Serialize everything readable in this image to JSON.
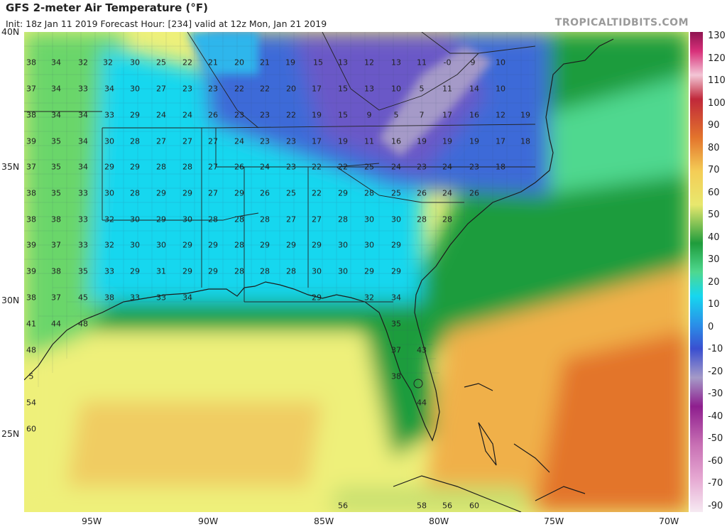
{
  "header": {
    "title": "GFS 2-meter Air Temperature (°F)",
    "subtitle": "Init: 18z Jan 11 2019   Forecast Hour: [234]   valid at 12z Mon, Jan 21 2019",
    "brand": "TROPICALTIDBITS.COM"
  },
  "axes": {
    "lat_labels": [
      "40N",
      "35N",
      "30N",
      "25N"
    ],
    "lon_labels": [
      "95W",
      "90W",
      "85W",
      "80W",
      "75W",
      "70W"
    ]
  },
  "colorbar": {
    "labels": [
      "130",
      "120",
      "110",
      "100",
      "90",
      "80",
      "70",
      "60",
      "50",
      "40",
      "30",
      "20",
      "10",
      "0",
      "-10",
      "-20",
      "-30",
      "-40",
      "-50",
      "-60",
      "-70",
      "-90"
    ],
    "colors": [
      "#8e1450",
      "#d8307a",
      "#e98cb5",
      "#f3c6d6",
      "#b8253a",
      "#d8522a",
      "#ec8c3a",
      "#f4cd56",
      "#e8e86e",
      "#1c8a2c",
      "#4fd67a",
      "#22d2e8",
      "#2a8fe8",
      "#3a4fd0",
      "#5a3cb0",
      "#a59ac8",
      "#b063b0",
      "#8e1e8e",
      "#c870b4",
      "#e6a8d2",
      "#f3d2e6",
      "#f6eaf2"
    ]
  },
  "colors": {
    "very_cold": "#6a59c7",
    "cold": "#3e6ad8",
    "cool": "#2fb6ec",
    "cyan": "#16d7ef",
    "teal": "#4fd88f",
    "green": "#1f9c3c",
    "lightgreen": "#6ad66b",
    "yellow": "#eef07a",
    "orange": "#f0b04a",
    "darkorange": "#e3742c"
  },
  "temperatures": [
    {
      "t": "38"
    },
    {
      "t": "34"
    },
    {
      "t": "32"
    },
    {
      "t": "32"
    },
    {
      "t": "30"
    },
    {
      "t": "25"
    },
    {
      "t": "22"
    },
    {
      "t": "21"
    },
    {
      "t": "20"
    },
    {
      "t": "21"
    },
    {
      "t": "19"
    },
    {
      "t": "15"
    },
    {
      "t": "13"
    },
    {
      "t": "12"
    },
    {
      "t": "13"
    },
    {
      "t": "11"
    },
    {
      "t": "-0"
    },
    {
      "t": "9"
    },
    {
      "t": "10"
    },
    {
      "t": "37"
    },
    {
      "t": "34"
    },
    {
      "t": "33"
    },
    {
      "t": "34"
    },
    {
      "t": "30"
    },
    {
      "t": "27"
    },
    {
      "t": "23"
    },
    {
      "t": "23"
    },
    {
      "t": "22"
    },
    {
      "t": "22"
    },
    {
      "t": "20"
    },
    {
      "t": "17"
    },
    {
      "t": "15"
    },
    {
      "t": "13"
    },
    {
      "t": "10"
    },
    {
      "t": "5"
    },
    {
      "t": "11"
    },
    {
      "t": "14"
    },
    {
      "t": "10"
    },
    {
      "t": "38"
    },
    {
      "t": "34"
    },
    {
      "t": "34"
    },
    {
      "t": "33"
    },
    {
      "t": "29"
    },
    {
      "t": "24"
    },
    {
      "t": "24"
    },
    {
      "t": "26"
    },
    {
      "t": "23"
    },
    {
      "t": "23"
    },
    {
      "t": "22"
    },
    {
      "t": "19"
    },
    {
      "t": "15"
    },
    {
      "t": "9"
    },
    {
      "t": "5"
    },
    {
      "t": "7"
    },
    {
      "t": "17"
    },
    {
      "t": "16"
    },
    {
      "t": "12"
    },
    {
      "t": "19"
    },
    {
      "t": "39"
    },
    {
      "t": "35"
    },
    {
      "t": "34"
    },
    {
      "t": "30"
    },
    {
      "t": "28"
    },
    {
      "t": "27"
    },
    {
      "t": "27"
    },
    {
      "t": "27"
    },
    {
      "t": "24"
    },
    {
      "t": "23"
    },
    {
      "t": "23"
    },
    {
      "t": "17"
    },
    {
      "t": "19"
    },
    {
      "t": "11"
    },
    {
      "t": "16"
    },
    {
      "t": "19"
    },
    {
      "t": "19"
    },
    {
      "t": "19"
    },
    {
      "t": "17"
    },
    {
      "t": "18"
    },
    {
      "t": "37"
    },
    {
      "t": "35"
    },
    {
      "t": "34"
    },
    {
      "t": "29"
    },
    {
      "t": "29"
    },
    {
      "t": "28"
    },
    {
      "t": "28"
    },
    {
      "t": "27"
    },
    {
      "t": "26"
    },
    {
      "t": "24"
    },
    {
      "t": "23"
    },
    {
      "t": "22"
    },
    {
      "t": "22"
    },
    {
      "t": "25"
    },
    {
      "t": "24"
    },
    {
      "t": "23"
    },
    {
      "t": "24"
    },
    {
      "t": "23"
    },
    {
      "t": "18"
    },
    {
      "t": "38"
    },
    {
      "t": "35"
    },
    {
      "t": "33"
    },
    {
      "t": "30"
    },
    {
      "t": "28"
    },
    {
      "t": "29"
    },
    {
      "t": "29"
    },
    {
      "t": "27"
    },
    {
      "t": "29"
    },
    {
      "t": "26"
    },
    {
      "t": "25"
    },
    {
      "t": "22"
    },
    {
      "t": "29"
    },
    {
      "t": "28"
    },
    {
      "t": "25"
    },
    {
      "t": "26"
    },
    {
      "t": "24"
    },
    {
      "t": "26"
    },
    {
      "t": "38"
    },
    {
      "t": "38"
    },
    {
      "t": "33"
    },
    {
      "t": "32"
    },
    {
      "t": "30"
    },
    {
      "t": "29"
    },
    {
      "t": "30"
    },
    {
      "t": "28"
    },
    {
      "t": "28"
    },
    {
      "t": "28"
    },
    {
      "t": "27"
    },
    {
      "t": "27"
    },
    {
      "t": "28"
    },
    {
      "t": "30"
    },
    {
      "t": "30"
    },
    {
      "t": "28"
    },
    {
      "t": "28"
    },
    {
      "t": "39"
    },
    {
      "t": "37"
    },
    {
      "t": "33"
    },
    {
      "t": "32"
    },
    {
      "t": "30"
    },
    {
      "t": "30"
    },
    {
      "t": "29"
    },
    {
      "t": "29"
    },
    {
      "t": "28"
    },
    {
      "t": "29"
    },
    {
      "t": "29"
    },
    {
      "t": "29"
    },
    {
      "t": "30"
    },
    {
      "t": "30"
    },
    {
      "t": "29"
    },
    {
      "t": "39"
    },
    {
      "t": "38"
    },
    {
      "t": "35"
    },
    {
      "t": "33"
    },
    {
      "t": "29"
    },
    {
      "t": "31"
    },
    {
      "t": "29"
    },
    {
      "t": "29"
    },
    {
      "t": "28"
    },
    {
      "t": "28"
    },
    {
      "t": "28"
    },
    {
      "t": "30"
    },
    {
      "t": "30"
    },
    {
      "t": "29"
    },
    {
      "t": "29"
    },
    {
      "t": "38"
    },
    {
      "t": "37"
    },
    {
      "t": "45"
    },
    {
      "t": "38"
    },
    {
      "t": "33"
    },
    {
      "t": "33"
    },
    {
      "t": "34"
    },
    {
      "t": "29"
    },
    {
      "t": "32"
    },
    {
      "t": "34"
    },
    {
      "t": "41"
    },
    {
      "t": "44"
    },
    {
      "t": "48"
    },
    {
      "t": "35"
    },
    {
      "t": "48"
    },
    {
      "t": "37"
    },
    {
      "t": "43"
    },
    {
      "t": "5"
    },
    {
      "t": "38"
    },
    {
      "t": "54"
    },
    {
      "t": "44"
    },
    {
      "t": "60"
    },
    {
      "t": "56"
    },
    {
      "t": "58"
    },
    {
      "t": "56"
    },
    {
      "t": "60"
    }
  ]
}
